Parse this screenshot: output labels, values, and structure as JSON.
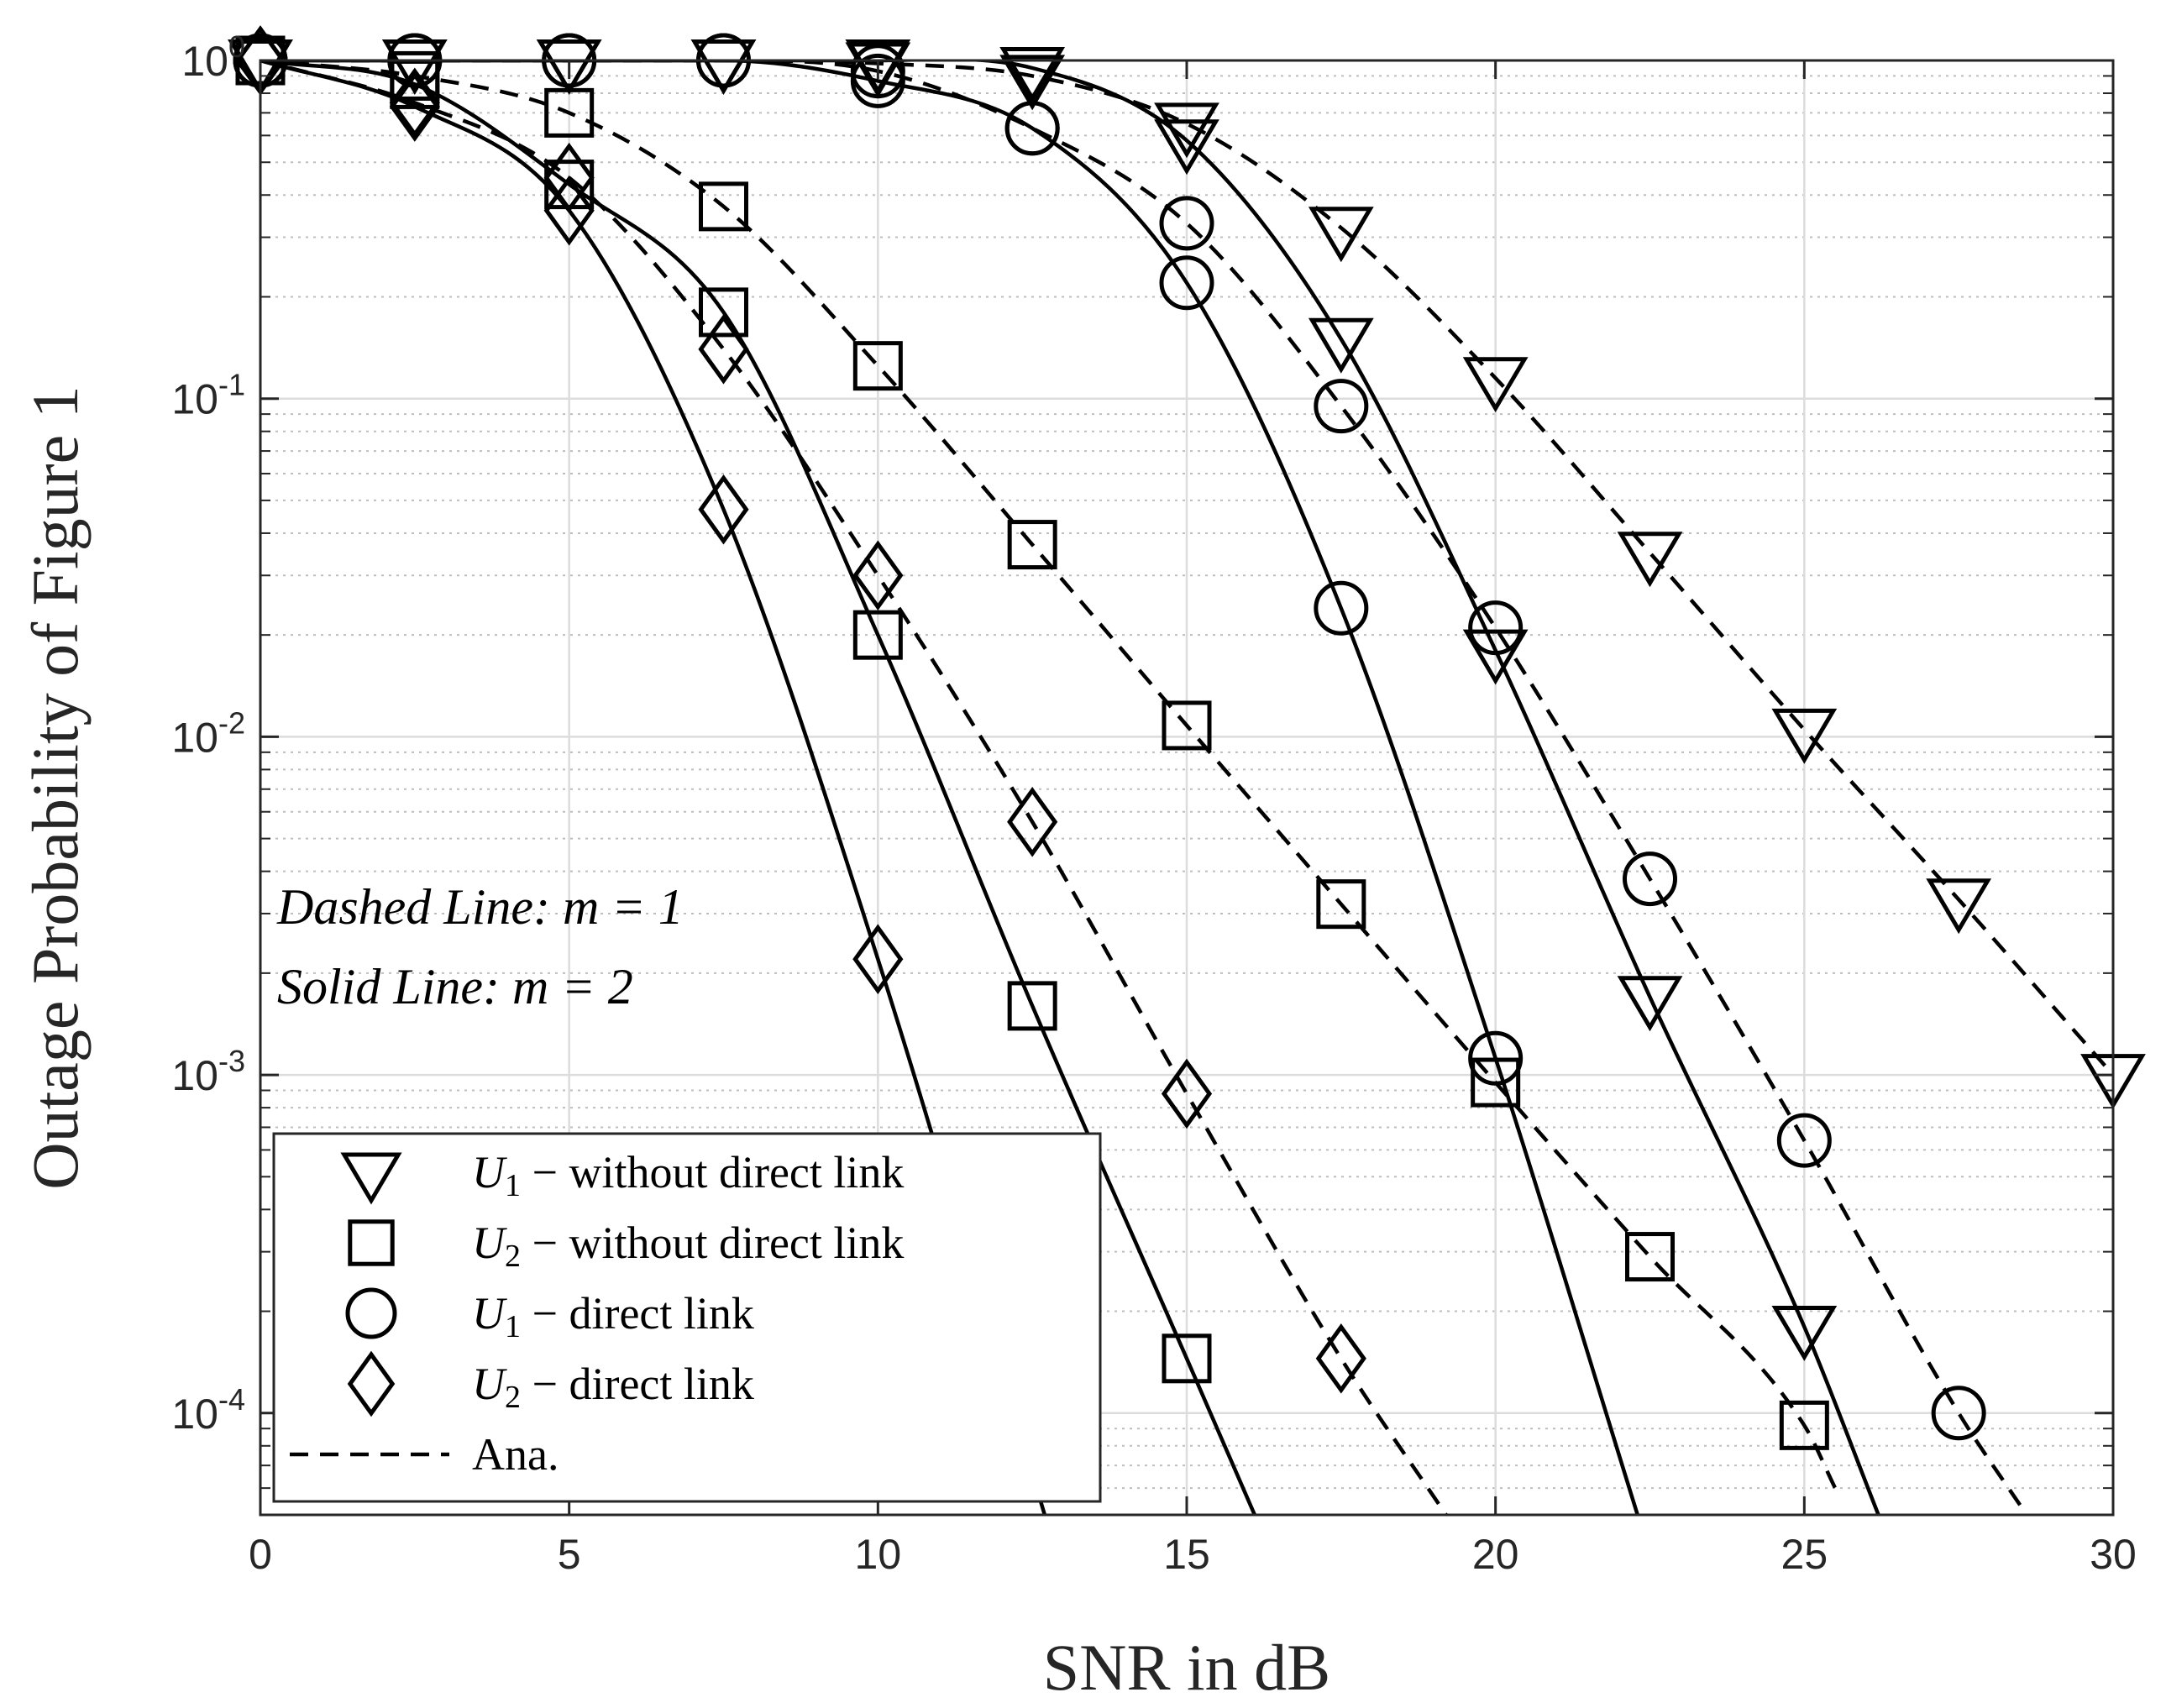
{
  "chart_data": {
    "type": "line",
    "title": "",
    "xlabel": "SNR in dB",
    "ylabel": "Outage Probability of Figure 1",
    "xlim": [
      0,
      30
    ],
    "ylim": [
      5e-05,
      1
    ],
    "yscale": "log",
    "grid": true,
    "minor_grid": true,
    "x_ticks": [
      0,
      5,
      10,
      15,
      20,
      25,
      30
    ],
    "x_tick_labels": [
      "0",
      "5",
      "10",
      "15",
      "20",
      "25",
      "30"
    ],
    "y_ticks": [
      1,
      0.1,
      0.01,
      0.001,
      0.0001
    ],
    "y_tick_labels": [
      {
        "base": "10",
        "exp": "0"
      },
      {
        "base": "10",
        "exp": "-1"
      },
      {
        "base": "10",
        "exp": "-2"
      },
      {
        "base": "10",
        "exp": "-3"
      },
      {
        "base": "10",
        "exp": "-4"
      }
    ],
    "annotations": [
      "Dashed Line: m = 1",
      "Solid Line: m = 2"
    ],
    "legend": {
      "position": "bottom-left",
      "entries": [
        {
          "marker": "triangle-down",
          "symbol": "U",
          "sub": "1",
          "text": " − without direct link"
        },
        {
          "marker": "square",
          "symbol": "U",
          "sub": "2",
          "text": " − without direct link"
        },
        {
          "marker": "circle",
          "symbol": "U",
          "sub": "1",
          "text": " − direct link"
        },
        {
          "marker": "diamond",
          "symbol": "U",
          "sub": "2",
          "text": " − direct link"
        },
        {
          "marker": "dashed-line",
          "symbol": "",
          "sub": "",
          "text": "Ana."
        }
      ]
    },
    "series": [
      {
        "marker": "triangle-down",
        "m": 1,
        "style": "dashed",
        "x": [
          0,
          2.5,
          5,
          7.5,
          10,
          12.5,
          15,
          17.5,
          20,
          22.5,
          25,
          27.5,
          30
        ],
        "y": [
          1,
          1,
          1,
          1,
          0.98,
          0.9,
          0.65,
          0.32,
          0.115,
          0.035,
          0.0105,
          0.0033,
          0.001
        ]
      },
      {
        "marker": "triangle-down",
        "m": 2,
        "style": "solid",
        "x": [
          0,
          2.5,
          5,
          7.5,
          10,
          12.5,
          15,
          17.5,
          20,
          22.5,
          25
        ],
        "y": [
          1,
          1,
          1,
          1,
          1,
          0.95,
          0.58,
          0.15,
          0.018,
          0.0017,
          0.00018
        ]
      },
      {
        "marker": "square",
        "m": 1,
        "style": "dashed",
        "x": [
          0,
          2.5,
          5,
          7.5,
          10,
          12.5,
          15,
          17.5,
          20,
          22.5,
          25
        ],
        "y": [
          1,
          0.9,
          0.7,
          0.37,
          0.125,
          0.037,
          0.0108,
          0.0032,
          0.00095,
          0.00029,
          9.2e-05
        ]
      },
      {
        "marker": "square",
        "m": 2,
        "style": "solid",
        "x": [
          0,
          2.5,
          5,
          7.5,
          10,
          12.5,
          15
        ],
        "y": [
          1,
          0.85,
          0.43,
          0.18,
          0.02,
          0.0016,
          0.000145
        ]
      },
      {
        "marker": "circle",
        "m": 1,
        "style": "dashed",
        "x": [
          0,
          2.5,
          5,
          7.5,
          10,
          12.5,
          15,
          17.5,
          20,
          22.5,
          25,
          27.5
        ],
        "y": [
          1,
          1,
          1,
          1,
          0.93,
          0.63,
          0.33,
          0.095,
          0.021,
          0.0038,
          0.00064,
          0.0001
        ]
      },
      {
        "marker": "circle",
        "m": 2,
        "style": "solid",
        "x": [
          0,
          2.5,
          5,
          7.5,
          10,
          12.5,
          15,
          17.5,
          20
        ],
        "y": [
          1,
          1,
          1,
          1,
          0.87,
          0.63,
          0.22,
          0.024,
          0.00112
        ]
      },
      {
        "marker": "diamond",
        "m": 1,
        "style": "dashed",
        "x": [
          0,
          2.5,
          5,
          7.5,
          10,
          12.5,
          15,
          17.5
        ],
        "y": [
          1,
          0.75,
          0.45,
          0.14,
          0.03,
          0.0056,
          0.00088,
          0.000145
        ]
      },
      {
        "marker": "diamond",
        "m": 2,
        "style": "solid",
        "x": [
          0,
          2.5,
          5,
          7.5,
          10
        ],
        "y": [
          1,
          0.73,
          0.36,
          0.047,
          0.0022
        ]
      }
    ],
    "curves": [
      {
        "style": "dashed",
        "x": [
          0,
          2.5,
          5,
          7.5,
          10,
          12.5,
          15,
          17.5,
          20,
          22.5,
          25,
          27.5,
          30
        ],
        "y": [
          1,
          1,
          1,
          1,
          0.98,
          0.9,
          0.65,
          0.32,
          0.115,
          0.035,
          0.0105,
          0.0033,
          0.001
        ]
      },
      {
        "style": "solid",
        "x": [
          0,
          2.5,
          5,
          7.5,
          10,
          12.5,
          15,
          17.5,
          20,
          22.5,
          25,
          26.2
        ],
        "y": [
          1,
          1,
          1,
          1,
          1,
          0.95,
          0.58,
          0.15,
          0.018,
          0.0017,
          0.00018,
          5e-05
        ]
      },
      {
        "style": "dashed",
        "x": [
          0,
          2.5,
          5,
          7.5,
          10,
          12.5,
          15,
          17.5,
          20,
          22.5,
          25,
          25.5
        ],
        "y": [
          1,
          0.9,
          0.7,
          0.37,
          0.125,
          0.037,
          0.0108,
          0.0032,
          0.00095,
          0.00029,
          9.2e-05,
          6e-05
        ]
      },
      {
        "style": "solid",
        "x": [
          0,
          2.5,
          5,
          7.5,
          10,
          12.5,
          15,
          16.1
        ],
        "y": [
          1,
          0.85,
          0.43,
          0.18,
          0.02,
          0.0016,
          0.000145,
          5e-05
        ]
      },
      {
        "style": "dashed",
        "x": [
          0,
          2.5,
          5,
          7.5,
          10,
          12.5,
          15,
          17.5,
          20,
          22.5,
          25,
          27.5,
          28.6
        ],
        "y": [
          1,
          1,
          1,
          1,
          0.93,
          0.63,
          0.33,
          0.095,
          0.021,
          0.0038,
          0.00064,
          0.0001,
          5e-05
        ]
      },
      {
        "style": "solid",
        "x": [
          0,
          2.5,
          5,
          7.5,
          10,
          12.5,
          15,
          17.5,
          20,
          22.3
        ],
        "y": [
          1,
          1,
          1,
          1,
          0.87,
          0.63,
          0.22,
          0.024,
          0.00112,
          5e-05
        ]
      },
      {
        "style": "dashed",
        "x": [
          0,
          2.5,
          5,
          7.5,
          10,
          12.5,
          15,
          17.5,
          19.2
        ],
        "y": [
          1,
          0.75,
          0.45,
          0.14,
          0.03,
          0.0056,
          0.00088,
          0.000145,
          5e-05
        ]
      },
      {
        "style": "solid",
        "x": [
          0,
          2.5,
          5,
          7.5,
          10,
          12.7
        ],
        "y": [
          1,
          0.73,
          0.36,
          0.047,
          0.0022,
          5e-05
        ]
      }
    ]
  }
}
